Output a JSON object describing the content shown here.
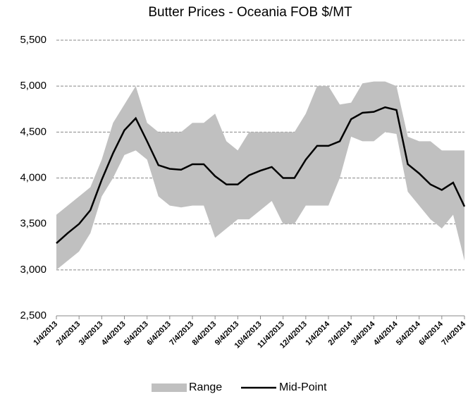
{
  "chart_data": {
    "type": "line",
    "title": "Butter Prices - Oceania FOB $/MT",
    "categories": [
      "1/4/2013",
      null,
      "2/4/2013",
      null,
      "3/4/2013",
      null,
      "4/4/2013",
      null,
      "5/4/2013",
      null,
      "6/4/2013",
      null,
      "7/4/2013",
      null,
      "8/4/2013",
      null,
      "9/4/2013",
      null,
      "10/4/2013",
      null,
      "11/4/2013",
      null,
      "12/4/2013",
      null,
      "1/4/2014",
      null,
      "2/4/2014",
      null,
      "3/4/2014",
      null,
      "4/4/2014",
      null,
      "5/4/2014",
      null,
      "6/4/2014",
      null,
      "7/4/2014"
    ],
    "range": {
      "name": "Range",
      "color": "#c0c0c0",
      "upper": [
        3600,
        3700,
        3800,
        3900,
        4200,
        4600,
        4800,
        5000,
        4600,
        4500,
        4500,
        4500,
        4600,
        4600,
        4700,
        4400,
        4300,
        4500,
        4500,
        4500,
        4500,
        4500,
        4700,
        5000,
        5000,
        4800,
        4820,
        5030,
        5050,
        5050,
        5000,
        4450,
        4400,
        4400,
        4300,
        4300,
        4300
      ],
      "lower": [
        3000,
        3100,
        3200,
        3400,
        3800,
        4000,
        4250,
        4300,
        4200,
        3800,
        3700,
        3680,
        3700,
        3700,
        3350,
        3450,
        3550,
        3550,
        3650,
        3750,
        3500,
        3500,
        3700,
        3700,
        3700,
        4000,
        4450,
        4400,
        4400,
        4500,
        4480,
        3850,
        3700,
        3550,
        3450,
        3600,
        3100
      ]
    },
    "series": [
      {
        "name": "Mid-Point",
        "color": "#000000",
        "values": [
          3290,
          3400,
          3500,
          3650,
          3980,
          4270,
          4520,
          4650,
          4400,
          4140,
          4100,
          4090,
          4150,
          4150,
          4020,
          3930,
          3930,
          4030,
          4080,
          4120,
          4000,
          4000,
          4200,
          4350,
          4350,
          4400,
          4640,
          4710,
          4720,
          4770,
          4740,
          4150,
          4050,
          3930,
          3870,
          3950,
          3690
        ]
      }
    ],
    "ylim": [
      2500,
      5500
    ],
    "yticks": [
      {
        "value": 2500,
        "label": "2,500"
      },
      {
        "value": 3000,
        "label": "3,000"
      },
      {
        "value": 3500,
        "label": "3,500"
      },
      {
        "value": 4000,
        "label": "4,000"
      },
      {
        "value": 4500,
        "label": "4,500"
      },
      {
        "value": 5000,
        "label": "5,000"
      },
      {
        "value": 5500,
        "label": "5,500"
      }
    ],
    "grid": true,
    "legend": "bottom"
  }
}
